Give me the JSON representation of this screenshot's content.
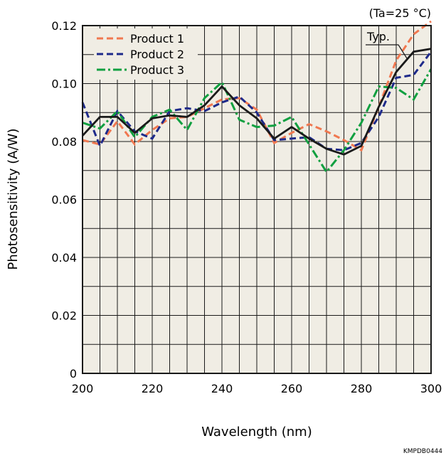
{
  "chart_data": {
    "type": "line",
    "xlabel": "Wavelength (nm)",
    "ylabel": "Photosensitivity (A/W)",
    "condition": "(Ta=25 °C)",
    "typ_label": "Typ.",
    "code": "KMPDB0444",
    "xlim": [
      200,
      300
    ],
    "ylim": [
      0,
      0.12
    ],
    "x_ticks": [
      "200",
      "220",
      "240",
      "260",
      "280",
      "300"
    ],
    "y_ticks": [
      "0",
      "0.02",
      "0.04",
      "0.06",
      "0.08",
      "0.10",
      "0.12"
    ],
    "grid": true,
    "legend_position": "top-left",
    "background_color": "#f0ede4",
    "series": [
      {
        "name": "",
        "color": "#1a1a1a",
        "dash": "solid",
        "x": [
          200,
          205,
          210,
          215,
          220,
          225,
          230,
          235,
          240,
          245,
          250,
          255,
          260,
          265,
          270,
          275,
          280,
          285,
          290,
          295,
          300
        ],
        "y": [
          0.082,
          0.0885,
          0.0885,
          0.083,
          0.088,
          0.089,
          0.0885,
          0.0925,
          0.099,
          0.0925,
          0.088,
          0.081,
          0.085,
          0.081,
          0.0775,
          0.0755,
          0.0785,
          0.092,
          0.104,
          0.111,
          0.112
        ]
      },
      {
        "name": "Product 1",
        "color": "#f07850",
        "dash": "dash",
        "x": [
          200,
          205,
          210,
          215,
          220,
          225,
          230,
          235,
          240,
          245,
          250,
          255,
          260,
          265,
          270,
          275,
          280,
          285,
          290,
          295,
          300
        ],
        "y": [
          0.0805,
          0.079,
          0.087,
          0.079,
          0.084,
          0.088,
          0.0885,
          0.0915,
          0.0945,
          0.095,
          0.091,
          0.0795,
          0.083,
          0.086,
          0.0835,
          0.0805,
          0.077,
          0.092,
          0.108,
          0.117,
          0.1215
        ]
      },
      {
        "name": "Product 2",
        "color": "#1e2a8a",
        "dash": "dash",
        "x": [
          200,
          205,
          210,
          215,
          220,
          225,
          230,
          235,
          240,
          245,
          250,
          255,
          260,
          265,
          270,
          275,
          280,
          285,
          290,
          295,
          300
        ],
        "y": [
          0.0935,
          0.0785,
          0.0905,
          0.0835,
          0.081,
          0.0905,
          0.0915,
          0.0905,
          0.0935,
          0.0955,
          0.09,
          0.0805,
          0.081,
          0.0815,
          0.0775,
          0.077,
          0.0795,
          0.0885,
          0.102,
          0.103,
          0.111
        ]
      },
      {
        "name": "Product 3",
        "color": "#10a040",
        "dash": "dashdot",
        "x": [
          200,
          205,
          210,
          215,
          220,
          225,
          230,
          235,
          240,
          245,
          250,
          255,
          260,
          265,
          270,
          275,
          280,
          285,
          290,
          295,
          300
        ],
        "y": [
          0.0865,
          0.0845,
          0.0905,
          0.0815,
          0.0885,
          0.091,
          0.084,
          0.095,
          0.1005,
          0.0875,
          0.085,
          0.0855,
          0.0885,
          0.079,
          0.0695,
          0.077,
          0.0865,
          0.099,
          0.0985,
          0.0945,
          0.105
        ]
      }
    ]
  }
}
